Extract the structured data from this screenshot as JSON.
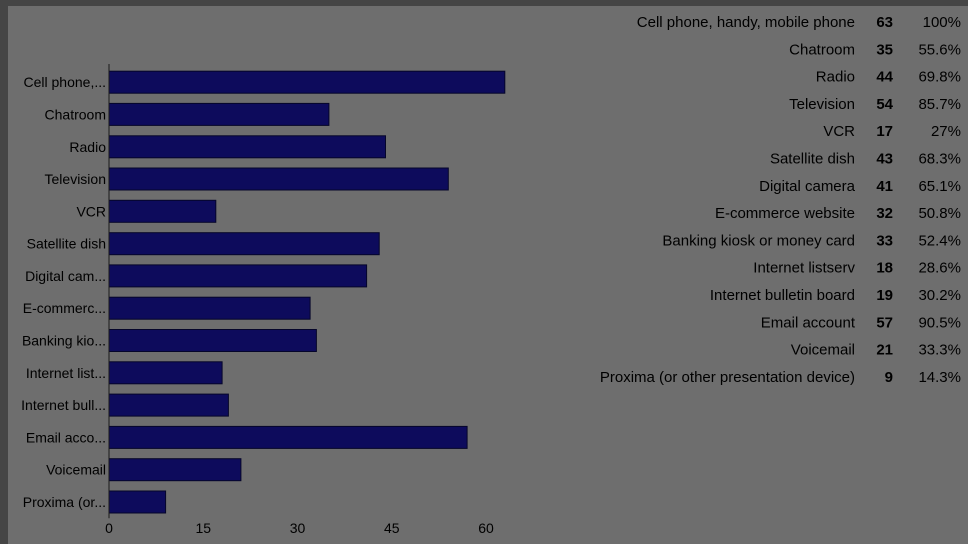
{
  "chart_data": {
    "type": "bar",
    "orientation": "horizontal",
    "categories": [
      "Cell phone,...",
      "Chatroom",
      "Radio",
      "Television",
      "VCR",
      "Satellite dish",
      "Digital cam...",
      "E-commerc...",
      "Banking kio...",
      "Internet list...",
      "Internet bull...",
      "Email acco...",
      "Voicemail",
      "Proxima (or..."
    ],
    "values": [
      63,
      35,
      44,
      54,
      17,
      43,
      41,
      32,
      33,
      18,
      19,
      57,
      21,
      9
    ],
    "xlim": [
      0,
      65
    ],
    "xticks": [
      "0",
      "15",
      "30",
      "45",
      "60"
    ],
    "grid": false,
    "bar_color": "#0d0b5c",
    "table": {
      "labels": [
        "Cell phone, handy, mobile phone",
        "Chatroom",
        "Radio",
        "Television",
        "VCR",
        "Satellite dish",
        "Digital camera",
        "E-commerce website",
        "Banking kiosk or money card",
        "Internet listserv",
        "Internet bulletin board",
        "Email account",
        "Voicemail",
        "Proxima (or other presentation device)"
      ],
      "counts": [
        "63",
        "35",
        "44",
        "54",
        "17",
        "43",
        "41",
        "32",
        "33",
        "18",
        "19",
        "57",
        "21",
        "9"
      ],
      "percents": [
        "100%",
        "55.6%",
        "69.8%",
        "85.7%",
        "27%",
        "68.3%",
        "65.1%",
        "50.8%",
        "52.4%",
        "28.6%",
        "30.2%",
        "90.5%",
        "33.3%",
        "14.3%"
      ]
    }
  }
}
